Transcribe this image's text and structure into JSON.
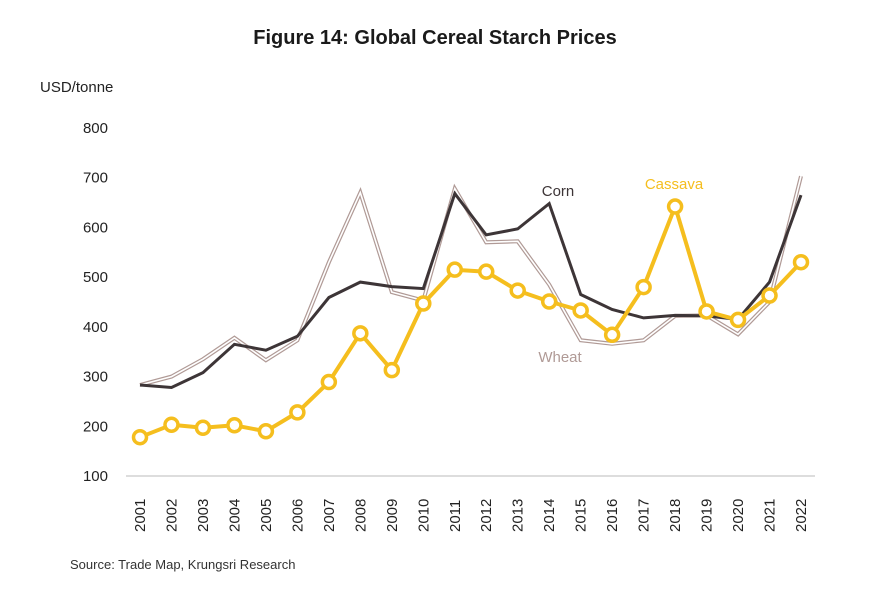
{
  "chart_data": {
    "type": "line",
    "title": "Figure 14: Global Cereal Starch Prices",
    "ylabel": "USD/tonne",
    "xlabel": "",
    "ylim": [
      100,
      800
    ],
    "yticks": [
      100,
      200,
      300,
      400,
      500,
      600,
      700,
      800
    ],
    "x": [
      "2001",
      "2002",
      "2003",
      "2004",
      "2005",
      "2006",
      "2007",
      "2008",
      "2009",
      "2010",
      "2011",
      "2012",
      "2013",
      "2014",
      "2015",
      "2016",
      "2017",
      "2018",
      "2019",
      "2020",
      "2021",
      "2022"
    ],
    "series": [
      {
        "name": "Corn",
        "color": "#3d3537",
        "values": [
          283,
          278,
          308,
          365,
          353,
          381,
          459,
          490,
          481,
          477,
          668,
          585,
          597,
          648,
          465,
          435,
          418,
          423,
          422,
          415,
          490,
          665
        ]
      },
      {
        "name": "Wheat",
        "color": "#b09a96",
        "values": [
          283,
          300,
          335,
          378,
          333,
          373,
          530,
          670,
          470,
          453,
          678,
          570,
          572,
          485,
          373,
          366,
          373,
          422,
          423,
          385,
          450,
          703
        ]
      },
      {
        "name": "Cassava",
        "color": "#f5be1e",
        "values": [
          178,
          203,
          197,
          202,
          190,
          228,
          289,
          387,
          313,
          447,
          515,
          511,
          473,
          451,
          433,
          384,
          480,
          642,
          431,
          414,
          463,
          530
        ]
      }
    ],
    "grid": false,
    "legend": "inline labels"
  },
  "footer": {
    "source": "Source: Trade Map, Krungsri Research"
  }
}
